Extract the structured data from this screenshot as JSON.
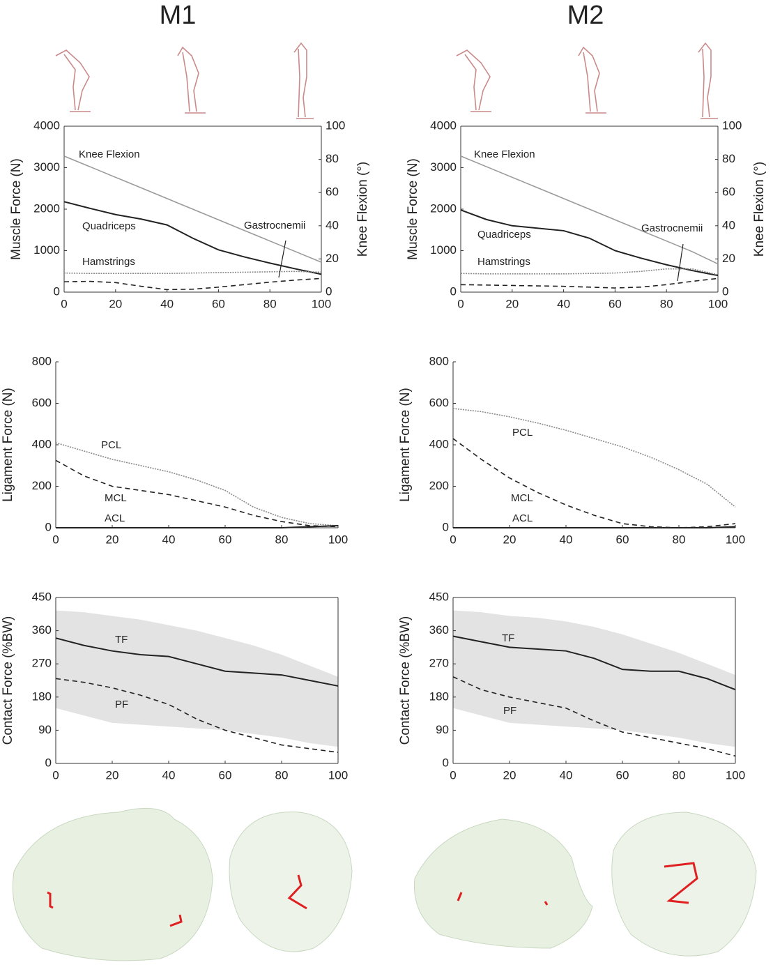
{
  "columns": [
    "M1",
    "M2"
  ],
  "chart_data": [
    {
      "type": "line",
      "xlim": [
        0,
        100
      ],
      "xticks": [
        0,
        20,
        40,
        60,
        80,
        100
      ],
      "ylim": [
        0,
        4000
      ],
      "yticks": [
        0,
        1000,
        2000,
        3000,
        4000
      ],
      "y2lim": [
        0,
        100
      ],
      "y2ticks": [
        0,
        20,
        40,
        60,
        80,
        100
      ],
      "ylabel": "Muscle Force (N)",
      "y2label": "Knee Flexion (°)",
      "box": true,
      "x": [
        0,
        10,
        20,
        30,
        40,
        50,
        60,
        70,
        80,
        90,
        100
      ],
      "series": [
        {
          "name": "Knee Flexion",
          "color": "#9a9a9a",
          "style": "solid",
          "axis": "y2",
          "values": [
            82,
            75.6,
            69.2,
            62.8,
            56.4,
            50,
            43.6,
            37.2,
            30.8,
            24.4,
            18
          ]
        },
        {
          "name": "Quadriceps",
          "color": "#222222",
          "style": "solid",
          "values": [
            2180,
            2020,
            1870,
            1760,
            1620,
            1300,
            1020,
            850,
            700,
            560,
            430
          ]
        },
        {
          "name": "Hamstrings",
          "color": "#8a8a8a",
          "style": "dotted",
          "values": [
            460,
            450,
            450,
            450,
            450,
            460,
            470,
            480,
            490,
            500,
            480
          ]
        },
        {
          "name": "Gastrocnemii",
          "color": "#222222",
          "style": "dashed",
          "values": [
            250,
            260,
            230,
            140,
            60,
            70,
            120,
            180,
            240,
            290,
            330
          ]
        }
      ]
    },
    {
      "type": "line",
      "xlim": [
        0,
        100
      ],
      "xticks": [
        0,
        20,
        40,
        60,
        80,
        100
      ],
      "ylim": [
        0,
        4000
      ],
      "yticks": [
        0,
        1000,
        2000,
        3000,
        4000
      ],
      "y2lim": [
        0,
        100
      ],
      "y2ticks": [
        0,
        20,
        40,
        60,
        80,
        100
      ],
      "ylabel": "Muscle Force (N)",
      "y2label": "Knee Flexion (°)",
      "box": true,
      "x": [
        0,
        10,
        20,
        30,
        40,
        50,
        60,
        70,
        80,
        90,
        100
      ],
      "series": [
        {
          "name": "Knee Flexion",
          "color": "#9a9a9a",
          "style": "solid",
          "axis": "y2",
          "values": [
            82,
            75.6,
            69.2,
            62.8,
            56.4,
            50,
            43.6,
            37.2,
            30.8,
            24.4,
            17
          ]
        },
        {
          "name": "Quadriceps",
          "color": "#222222",
          "style": "solid",
          "values": [
            1980,
            1750,
            1600,
            1540,
            1480,
            1300,
            1000,
            820,
            660,
            520,
            400
          ]
        },
        {
          "name": "Hamstrings",
          "color": "#8a8a8a",
          "style": "dotted",
          "values": [
            450,
            440,
            440,
            440,
            440,
            450,
            460,
            500,
            560,
            560,
            420
          ]
        },
        {
          "name": "Gastrocnemii",
          "color": "#222222",
          "style": "dashed",
          "values": [
            180,
            170,
            160,
            150,
            140,
            120,
            100,
            120,
            180,
            260,
            330
          ]
        }
      ]
    },
    {
      "type": "line",
      "xlim": [
        0,
        100
      ],
      "xticks": [
        0,
        20,
        40,
        60,
        80,
        100
      ],
      "ylim": [
        0,
        800
      ],
      "yticks": [
        0,
        200,
        400,
        600,
        800
      ],
      "ylabel": "Ligament Force (N)",
      "box": false,
      "x": [
        0,
        10,
        20,
        30,
        40,
        50,
        60,
        70,
        80,
        90,
        100
      ],
      "series": [
        {
          "name": "PCL",
          "color": "#8a8a8a",
          "style": "dotted",
          "values": [
            410,
            370,
            330,
            300,
            270,
            230,
            180,
            100,
            50,
            20,
            10
          ]
        },
        {
          "name": "MCL",
          "color": "#222222",
          "style": "dashed",
          "values": [
            325,
            250,
            200,
            180,
            160,
            130,
            100,
            60,
            30,
            10,
            5
          ]
        },
        {
          "name": "ACL",
          "color": "#222222",
          "style": "solid",
          "values": [
            0,
            0,
            0,
            0,
            0,
            0,
            0,
            0,
            0,
            5,
            10
          ]
        }
      ]
    },
    {
      "type": "line",
      "xlim": [
        0,
        100
      ],
      "xticks": [
        0,
        20,
        40,
        60,
        80,
        100
      ],
      "ylim": [
        0,
        800
      ],
      "yticks": [
        0,
        200,
        400,
        600,
        800
      ],
      "ylabel": "Ligament Force (N)",
      "box": false,
      "x": [
        0,
        10,
        20,
        30,
        40,
        50,
        60,
        70,
        80,
        90,
        100
      ],
      "series": [
        {
          "name": "PCL",
          "color": "#8a8a8a",
          "style": "dotted",
          "values": [
            575,
            560,
            535,
            505,
            470,
            430,
            390,
            340,
            280,
            210,
            100
          ]
        },
        {
          "name": "MCL",
          "color": "#222222",
          "style": "dashed",
          "values": [
            430,
            330,
            240,
            170,
            110,
            60,
            20,
            5,
            0,
            5,
            20
          ]
        },
        {
          "name": "ACL",
          "color": "#222222",
          "style": "solid",
          "values": [
            0,
            0,
            0,
            0,
            0,
            0,
            0,
            0,
            0,
            0,
            5
          ]
        }
      ]
    },
    {
      "type": "line",
      "xlim": [
        0,
        100
      ],
      "xticks": [
        0,
        20,
        40,
        60,
        80,
        100
      ],
      "ylim": [
        0,
        450
      ],
      "yticks": [
        0,
        90,
        180,
        270,
        360,
        450
      ],
      "ylabel": "Contact Force (%BW)",
      "box": true,
      "x": [
        0,
        10,
        20,
        30,
        40,
        50,
        60,
        70,
        80,
        90,
        100
      ],
      "band": {
        "color": "#e3e3e3",
        "upper": [
          415,
          410,
          400,
          390,
          375,
          360,
          340,
          320,
          295,
          265,
          235
        ],
        "lower": [
          150,
          130,
          110,
          105,
          100,
          95,
          90,
          80,
          70,
          55,
          45
        ]
      },
      "series": [
        {
          "name": "TF",
          "color": "#222222",
          "style": "solid",
          "values": [
            340,
            320,
            305,
            295,
            290,
            270,
            250,
            245,
            240,
            225,
            210
          ]
        },
        {
          "name": "PF",
          "color": "#222222",
          "style": "dashed",
          "values": [
            230,
            220,
            205,
            185,
            160,
            120,
            90,
            70,
            50,
            40,
            30
          ]
        }
      ]
    },
    {
      "type": "line",
      "xlim": [
        0,
        100
      ],
      "xticks": [
        0,
        20,
        40,
        60,
        80,
        100
      ],
      "ylim": [
        0,
        450
      ],
      "yticks": [
        0,
        90,
        180,
        270,
        360,
        450
      ],
      "ylabel": "Contact Force (%BW)",
      "box": true,
      "x": [
        0,
        10,
        20,
        30,
        40,
        50,
        60,
        70,
        80,
        90,
        100
      ],
      "band": {
        "color": "#e3e3e3",
        "upper": [
          415,
          410,
          400,
          395,
          385,
          370,
          350,
          325,
          300,
          270,
          240
        ],
        "lower": [
          150,
          130,
          110,
          105,
          100,
          95,
          90,
          80,
          70,
          55,
          45
        ]
      },
      "series": [
        {
          "name": "TF",
          "color": "#222222",
          "style": "solid",
          "values": [
            345,
            330,
            315,
            310,
            305,
            285,
            255,
            250,
            250,
            230,
            200
          ]
        },
        {
          "name": "PF",
          "color": "#222222",
          "style": "dashed",
          "values": [
            235,
            200,
            180,
            165,
            150,
            115,
            85,
            70,
            55,
            40,
            20
          ]
        }
      ]
    }
  ]
}
